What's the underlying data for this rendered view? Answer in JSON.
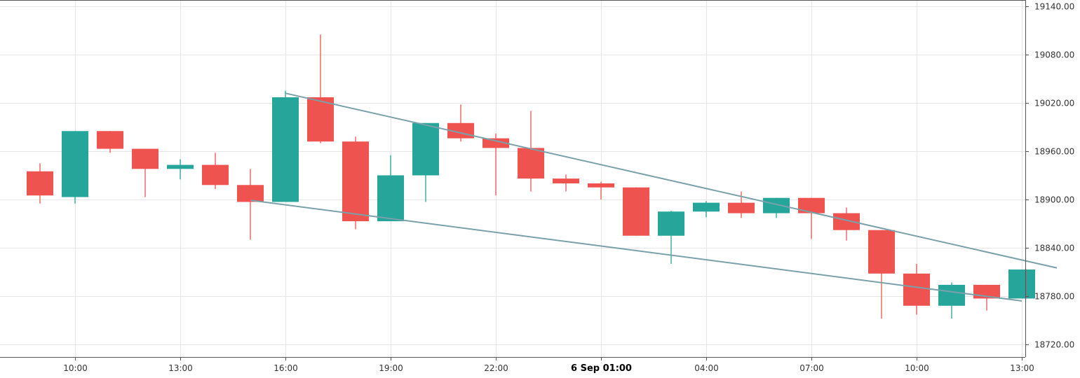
{
  "chart_data": {
    "type": "candlestick",
    "title": "",
    "xlabel": "",
    "ylabel": "",
    "ylim": [
      18705,
      19140
    ],
    "grid": true,
    "colors": {
      "up": "#26a69a",
      "down": "#ef5350",
      "trendline": "#7aa0aa",
      "grid": "#e6e6e6"
    },
    "y_ticks": [
      "18720.00",
      "18780.00",
      "18840.00",
      "18900.00",
      "18960.00",
      "19020.00",
      "19080.00",
      "19140.00"
    ],
    "x_ticks": [
      {
        "label": "10:00",
        "index": 1,
        "bold": false
      },
      {
        "label": "13:00",
        "index": 4,
        "bold": false
      },
      {
        "label": "16:00",
        "index": 7,
        "bold": false
      },
      {
        "label": "19:00",
        "index": 10,
        "bold": false
      },
      {
        "label": "22:00",
        "index": 13,
        "bold": false
      },
      {
        "label": "6 Sep 01:00",
        "index": 16,
        "bold": true
      },
      {
        "label": "04:00",
        "index": 19,
        "bold": false
      },
      {
        "label": "07:00",
        "index": 22,
        "bold": false
      },
      {
        "label": "10:00",
        "index": 25,
        "bold": false
      },
      {
        "label": "13:00",
        "index": 28,
        "bold": false
      }
    ],
    "candles": [
      {
        "open": 18935,
        "high": 18945,
        "low": 18895,
        "close": 18905
      },
      {
        "open": 18903,
        "high": 18985,
        "low": 18895,
        "close": 18985
      },
      {
        "open": 18985,
        "high": 18985,
        "low": 18958,
        "close": 18963
      },
      {
        "open": 18963,
        "high": 18963,
        "low": 18903,
        "close": 18938
      },
      {
        "open": 18938,
        "high": 18950,
        "low": 18925,
        "close": 18943
      },
      {
        "open": 18943,
        "high": 18958,
        "low": 18913,
        "close": 18918
      },
      {
        "open": 18918,
        "high": 18938,
        "low": 18850,
        "close": 18897
      },
      {
        "open": 18897,
        "high": 19035,
        "low": 18897,
        "close": 19027
      },
      {
        "open": 19027,
        "high": 19105,
        "low": 18970,
        "close": 18972
      },
      {
        "open": 18972,
        "high": 18978,
        "low": 18863,
        "close": 18873
      },
      {
        "open": 18873,
        "high": 18955,
        "low": 18873,
        "close": 18930
      },
      {
        "open": 18930,
        "high": 18995,
        "low": 18897,
        "close": 18995
      },
      {
        "open": 18995,
        "high": 19018,
        "low": 18972,
        "close": 18976
      },
      {
        "open": 18976,
        "high": 18982,
        "low": 18905,
        "close": 18964
      },
      {
        "open": 18964,
        "high": 19010,
        "low": 18910,
        "close": 18926
      },
      {
        "open": 18926,
        "high": 18931,
        "low": 18910,
        "close": 18920
      },
      {
        "open": 18920,
        "high": 18922,
        "low": 18900,
        "close": 18915
      },
      {
        "open": 18915,
        "high": 18915,
        "low": 18855,
        "close": 18855
      },
      {
        "open": 18855,
        "high": 18886,
        "low": 18820,
        "close": 18885
      },
      {
        "open": 18885,
        "high": 18898,
        "low": 18878,
        "close": 18896
      },
      {
        "open": 18896,
        "high": 18910,
        "low": 18877,
        "close": 18883
      },
      {
        "open": 18883,
        "high": 18902,
        "low": 18877,
        "close": 18902
      },
      {
        "open": 18902,
        "high": 18902,
        "low": 18851,
        "close": 18883
      },
      {
        "open": 18883,
        "high": 18890,
        "low": 18849,
        "close": 18862
      },
      {
        "open": 18862,
        "high": 18862,
        "low": 18752,
        "close": 18808
      },
      {
        "open": 18808,
        "high": 18820,
        "low": 18757,
        "close": 18768
      },
      {
        "open": 18768,
        "high": 18797,
        "low": 18752,
        "close": 18794
      },
      {
        "open": 18794,
        "high": 18794,
        "low": 18762,
        "close": 18777
      },
      {
        "open": 18777,
        "high": 18813,
        "low": 18777,
        "close": 18813
      }
    ],
    "trendlines": [
      {
        "from": {
          "index": 7,
          "price": 19032
        },
        "to": {
          "index": 29,
          "price": 18815
        }
      },
      {
        "from": {
          "index": 6,
          "price": 18899
        },
        "to": {
          "index": 28,
          "price": 18774
        }
      }
    ]
  }
}
